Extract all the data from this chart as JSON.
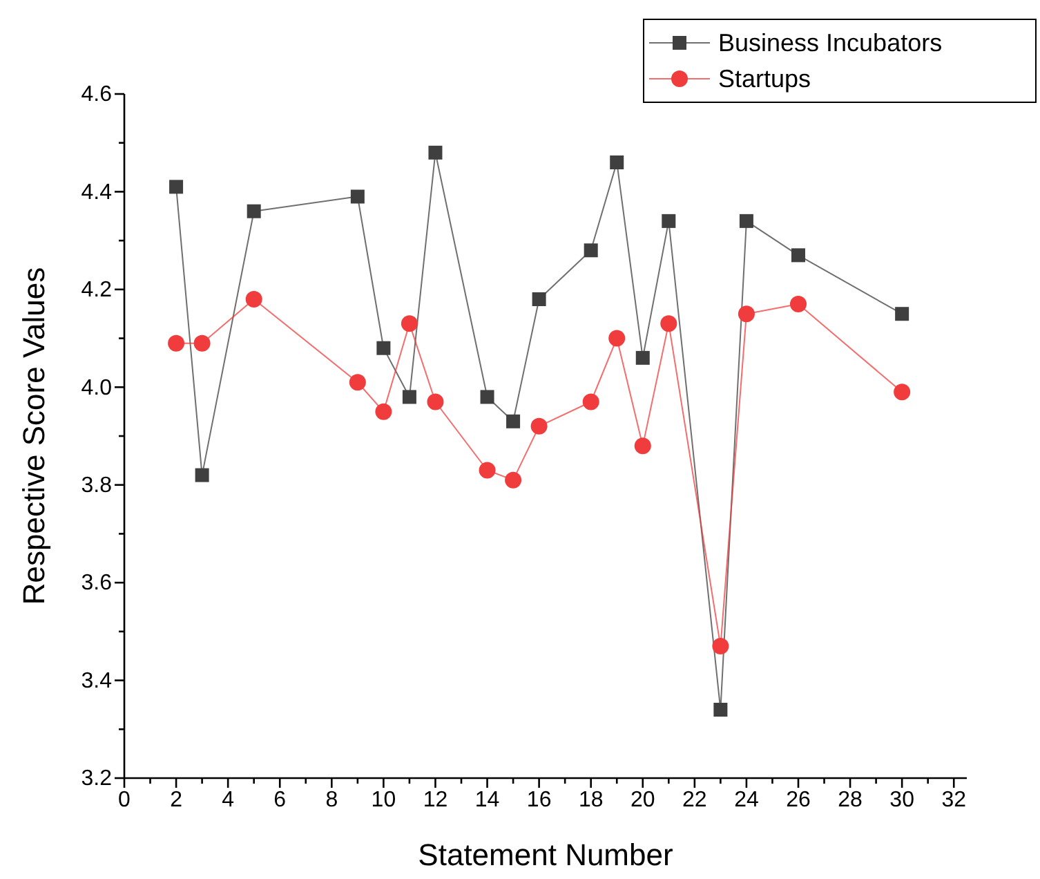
{
  "chart_data": {
    "type": "line",
    "xlabel": "Statement Number",
    "ylabel": "Respective Score Values",
    "xlim": [
      0,
      32.5
    ],
    "ylim": [
      3.2,
      4.6
    ],
    "xticks": [
      0,
      {
        "value": 1,
        "label": null
      },
      2,
      {
        "value": 3,
        "label": null
      },
      4,
      {
        "value": 5,
        "label": null
      },
      6,
      {
        "value": 7,
        "label": null
      },
      8,
      {
        "value": 9,
        "label": null
      },
      10,
      {
        "value": 11,
        "label": null
      },
      12,
      {
        "value": 13,
        "label": null
      },
      14,
      {
        "value": 15,
        "label": null
      },
      16,
      {
        "value": 17,
        "label": null
      },
      18,
      {
        "value": 19,
        "label": null
      },
      20,
      {
        "value": 21,
        "label": null
      },
      22,
      {
        "value": 23,
        "label": null
      },
      24,
      {
        "value": 25,
        "label": null
      },
      26,
      {
        "value": 27,
        "label": null
      },
      28,
      {
        "value": 29,
        "label": null
      },
      30,
      {
        "value": 31,
        "label": null
      },
      32
    ],
    "yticks": [
      {
        "value": 3.2,
        "label": "3.2"
      },
      {
        "value": 3.3,
        "label": null
      },
      {
        "value": 3.4,
        "label": "3.4"
      },
      {
        "value": 3.5,
        "label": null
      },
      {
        "value": 3.6,
        "label": "3.6"
      },
      {
        "value": 3.7,
        "label": null
      },
      {
        "value": 3.8,
        "label": "3.8"
      },
      {
        "value": 3.9,
        "label": null
      },
      {
        "value": 4.0,
        "label": "4.0"
      },
      {
        "value": 4.1,
        "label": null
      },
      {
        "value": 4.2,
        "label": "4.2"
      },
      {
        "value": 4.3,
        "label": null
      },
      {
        "value": 4.4,
        "label": "4.4"
      },
      {
        "value": 4.5,
        "label": null
      },
      {
        "value": 4.6,
        "label": "4.6"
      }
    ],
    "x": [
      2,
      3,
      5,
      9,
      10,
      11,
      12,
      14,
      15,
      16,
      18,
      19,
      20,
      21,
      23,
      24,
      26,
      30
    ],
    "grid": false,
    "legend": "top right",
    "line_style": "solid",
    "series": [
      {
        "name": "Business Incubators",
        "color": "#3f3f3f",
        "marker": "square",
        "values": [
          4.41,
          3.82,
          4.36,
          4.39,
          4.08,
          3.98,
          4.48,
          3.98,
          3.93,
          4.18,
          4.28,
          4.46,
          4.06,
          4.34,
          3.34,
          4.34,
          4.27,
          4.15
        ]
      },
      {
        "name": "Startups",
        "color": "#f03c3c",
        "marker": "circle",
        "values": [
          4.09,
          4.09,
          4.18,
          4.01,
          3.95,
          4.13,
          3.97,
          3.83,
          3.81,
          3.92,
          3.97,
          4.1,
          3.88,
          4.13,
          3.47,
          4.15,
          4.17,
          3.99
        ]
      }
    ]
  }
}
